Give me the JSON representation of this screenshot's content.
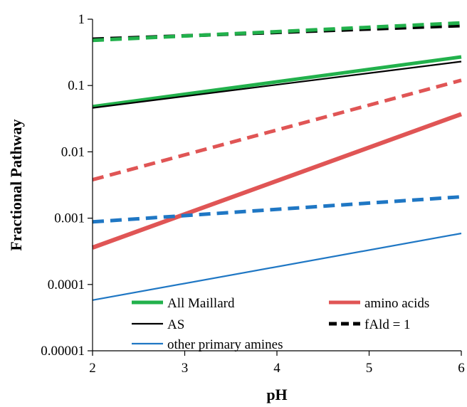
{
  "chart_data": {
    "type": "line",
    "title": "",
    "xlabel": "pH",
    "ylabel": "Fractional Pathway",
    "xlim": [
      2,
      6
    ],
    "ylim": [
      1e-05,
      1
    ],
    "y_scale": "log",
    "x_ticks": [
      2,
      3,
      4,
      5,
      6
    ],
    "x_tick_labels": [
      "2",
      "3",
      "4",
      "5",
      "6"
    ],
    "y_ticks": [
      1e-05,
      0.0001,
      0.001,
      0.01,
      0.1,
      1
    ],
    "y_tick_labels": [
      "0.00001",
      "0.0001",
      "0.001",
      "0.01",
      "0.1",
      "1"
    ],
    "grid": false,
    "legend_position": "bottom-inside",
    "series": [
      {
        "name": "All Maillard",
        "color": "#22b14c",
        "style": "solid",
        "x": [
          2,
          6
        ],
        "y": [
          0.048,
          0.27
        ]
      },
      {
        "name": "AS",
        "color": "#000000",
        "style": "solid",
        "x": [
          2,
          6
        ],
        "y": [
          0.046,
          0.23
        ]
      },
      {
        "name": "other primary amines",
        "color": "#1f77c4",
        "style": "solid",
        "x": [
          2,
          6
        ],
        "y": [
          5.8e-05,
          0.00059
        ]
      },
      {
        "name": "amino acids",
        "color": "#e05555",
        "style": "solid",
        "x": [
          2,
          6
        ],
        "y": [
          0.00036,
          0.037
        ]
      },
      {
        "name": "fAld = 1",
        "color": "#000000",
        "style": "dashed",
        "x": [
          2,
          6
        ],
        "y": [
          0.5,
          0.8
        ]
      },
      {
        "name": "",
        "color": "#22b14c",
        "style": "dashed",
        "x": [
          2,
          6
        ],
        "y": [
          0.48,
          0.88
        ]
      },
      {
        "name": "",
        "color": "#e05555",
        "style": "dashed",
        "x": [
          2,
          6
        ],
        "y": [
          0.0038,
          0.12
        ]
      },
      {
        "name": "",
        "color": "#1f77c4",
        "style": "dashed",
        "x": [
          2,
          6
        ],
        "y": [
          0.00088,
          0.0021
        ]
      }
    ],
    "legend": [
      {
        "label": "All Maillard",
        "color": "#22b14c",
        "style": "solid"
      },
      {
        "label": "amino acids",
        "color": "#e05555",
        "style": "solid"
      },
      {
        "label": "AS",
        "color": "#000000",
        "style": "solid"
      },
      {
        "label": "fAld = 1",
        "color": "#000000",
        "style": "dashed"
      },
      {
        "label": "other primary amines",
        "color": "#1f77c4",
        "style": "solid"
      }
    ]
  }
}
